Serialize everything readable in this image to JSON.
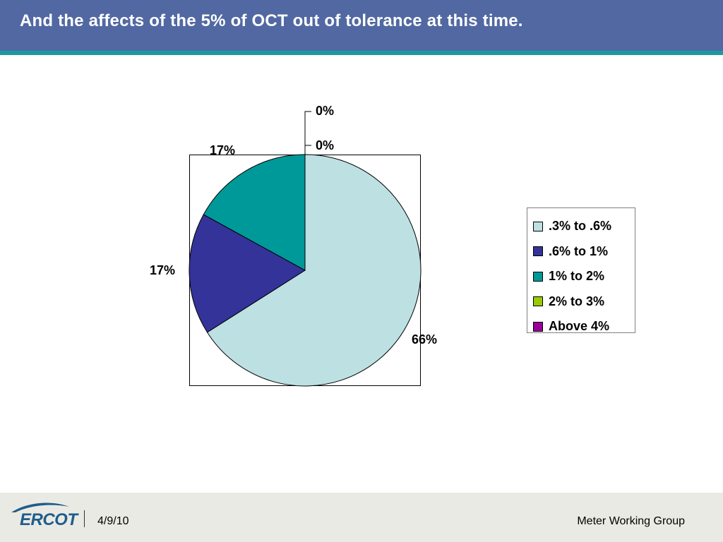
{
  "header": {
    "title": "And the affects of the 5% of OCT out of tolerance at this time.",
    "bar_color": "#5168a2",
    "stripe_color": "#1b9aa0"
  },
  "chart_data": {
    "type": "pie",
    "title": "",
    "categories": [
      ".3% to .6%",
      ".6% to 1%",
      "1% to 2%",
      "2% to 3%",
      "Above 4%"
    ],
    "values": [
      66,
      17,
      17,
      0,
      0
    ],
    "data_labels": [
      "66%",
      "17%",
      "17%",
      "0%",
      "0%"
    ],
    "colors": [
      "#bde0e3",
      "#333399",
      "#009999",
      "#99cc00",
      "#990099"
    ],
    "start_angle": "12 o'clock, clockwise",
    "legend_position": "right"
  },
  "footer": {
    "logo": "ERCOT",
    "date": "4/9/10",
    "group": "Meter Working Group"
  }
}
